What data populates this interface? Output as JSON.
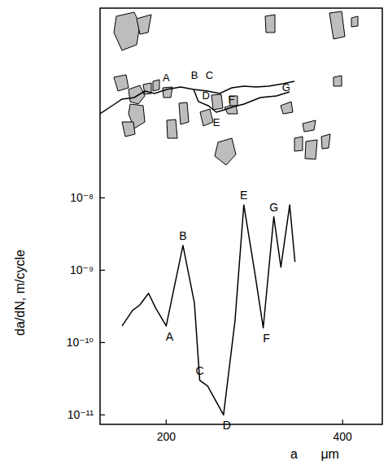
{
  "chart_data": {
    "type": "line",
    "xlabel": "a μm",
    "ylabel": "da/dN, m/cycle",
    "log": "y",
    "grid": false,
    "color": "#000000",
    "x": [
      150,
      162,
      170,
      180,
      188,
      200,
      219,
      232,
      238,
      247,
      265,
      278,
      288,
      300,
      310,
      322,
      330,
      340,
      346
    ],
    "values": [
      1.7e-10,
      2.8e-10,
      3.3e-10,
      4.8e-10,
      3e-10,
      1.7e-10,
      2.2e-09,
      3.5e-10,
      3e-11,
      2.5e-11,
      1e-11,
      2e-10,
      8e-09,
      1e-09,
      1.6e-10,
      5.5e-09,
      1.1e-09,
      8e-09,
      1.3e-09
    ],
    "xlim": [
      125,
      445
    ],
    "ylim": [
      7.4e-12,
      4.2e-06
    ],
    "xticks": [
      200,
      400
    ],
    "yticks": [
      {
        "value": 1e-11,
        "label": "10⁻¹¹"
      },
      {
        "value": 1e-10,
        "label": "10⁻¹⁰"
      },
      {
        "value": 1e-09,
        "label": "10⁻⁹"
      },
      {
        "value": 1e-08,
        "label": "10⁻⁸"
      }
    ],
    "annotations": [
      {
        "text": "A",
        "x": 200,
        "y": 1.7e-10
      },
      {
        "text": "B",
        "x": 219,
        "y": 2.2e-09
      },
      {
        "text": "C",
        "x": 238,
        "y": 3e-11
      },
      {
        "text": "D",
        "x": 265,
        "y": 1e-11
      },
      {
        "text": "E",
        "x": 288,
        "y": 8e-09
      },
      {
        "text": "F",
        "x": 310,
        "y": 1.6e-10
      },
      {
        "text": "G",
        "x": 322,
        "y": 5.5e-09
      }
    ],
    "crack_labels": [
      {
        "text": "A",
        "x": 200
      },
      {
        "text": "B",
        "x": 232
      },
      {
        "text": "C",
        "x": 249
      },
      {
        "text": "D",
        "x": 245
      },
      {
        "text": "E",
        "x": 257
      },
      {
        "text": "F",
        "x": 274
      },
      {
        "text": "G",
        "x": 336
      }
    ]
  }
}
